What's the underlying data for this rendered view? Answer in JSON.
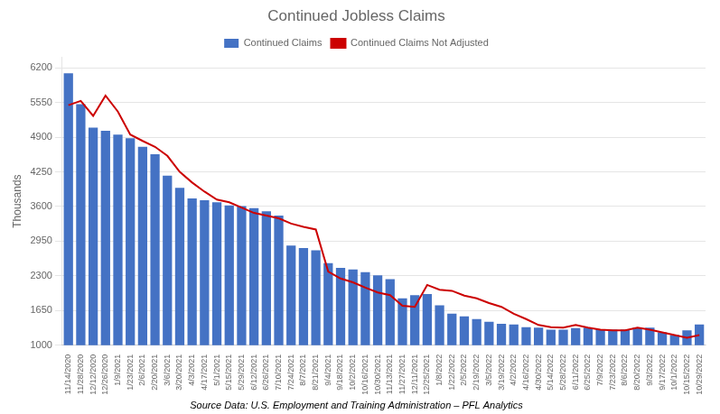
{
  "chart_data": {
    "type": "bar",
    "title": "Continued Jobless Claims",
    "ylabel": "Thousands",
    "source": "Source Data: U.S. Employment and Training Administration – PFL Analytics",
    "categories": [
      "11/14/2020",
      "11/28/2020",
      "12/12/2020",
      "12/26/2020",
      "1/9/2021",
      "1/23/2021",
      "2/6/2021",
      "2/20/2021",
      "3/6/2021",
      "3/20/2021",
      "4/3/2021",
      "4/17/2021",
      "5/1/2021",
      "5/15/2021",
      "5/29/2021",
      "6/12/2021",
      "6/26/2021",
      "7/10/2021",
      "7/24/2021",
      "8/7/2021",
      "8/21/2021",
      "9/4/2021",
      "9/18/2021",
      "10/2/2021",
      "10/16/2021",
      "10/30/2021",
      "11/13/2021",
      "11/27/2021",
      "12/11/2021",
      "12/25/2021",
      "1/8/2022",
      "1/22/2022",
      "2/5/2022",
      "2/19/2022",
      "3/5/2022",
      "3/19/2022",
      "4/2/2022",
      "4/16/2022",
      "4/30/2022",
      "5/14/2022",
      "5/28/2022",
      "6/11/2022",
      "6/25/2022",
      "7/9/2022",
      "7/23/2022",
      "8/6/2022",
      "8/20/2022",
      "9/3/2022",
      "9/17/2022",
      "10/1/2022",
      "10/15/2022",
      "10/29/2022"
    ],
    "series": [
      {
        "name": "Continued Claims",
        "type": "bar",
        "color": "#4472C4",
        "values": [
          6100,
          5520,
          5080,
          5020,
          4950,
          4880,
          4720,
          4580,
          4180,
          3950,
          3750,
          3720,
          3680,
          3620,
          3610,
          3570,
          3510,
          3430,
          2870,
          2820,
          2780,
          2540,
          2450,
          2420,
          2370,
          2310,
          2240,
          1880,
          1940,
          1960,
          1750,
          1590,
          1540,
          1490,
          1440,
          1400,
          1390,
          1340,
          1330,
          1290,
          1290,
          1320,
          1330,
          1300,
          1290,
          1290,
          1330,
          1330,
          1240,
          1190,
          1280,
          1390
        ]
      },
      {
        "name": "Continued Claims Not Adjusted",
        "type": "line",
        "color": "#CC0000",
        "values": [
          5500,
          5580,
          5300,
          5680,
          5380,
          4950,
          4830,
          4720,
          4550,
          4250,
          4050,
          3880,
          3730,
          3680,
          3580,
          3480,
          3430,
          3380,
          3280,
          3220,
          3170,
          2380,
          2250,
          2180,
          2080,
          1990,
          1940,
          1740,
          1720,
          2130,
          2040,
          2020,
          1930,
          1880,
          1790,
          1720,
          1590,
          1490,
          1380,
          1340,
          1330,
          1380,
          1330,
          1290,
          1280,
          1280,
          1330,
          1290,
          1240,
          1190,
          1140,
          1190
        ]
      }
    ],
    "ylim": [
      1000,
      6400
    ],
    "yticks": [
      1000,
      1650,
      2300,
      2950,
      3600,
      4250,
      4900,
      5550,
      6200
    ],
    "grid": true,
    "legend": "top"
  }
}
